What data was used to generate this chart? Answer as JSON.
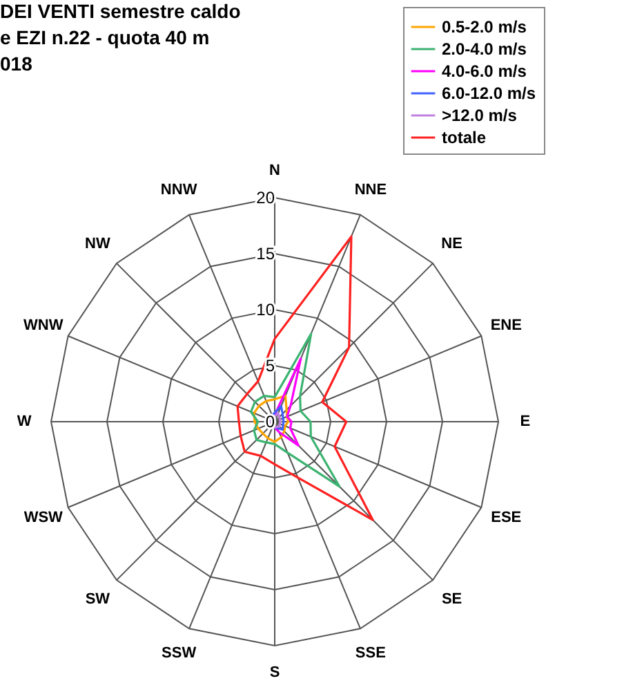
{
  "chart_data": {
    "type": "radar",
    "title": "DEI VENTI  semestre caldo",
    "subtitle": "e EZI n.22 - quota 40 m\n018",
    "categories": [
      "N",
      "NNE",
      "NE",
      "ENE",
      "E",
      "ESE",
      "SE",
      "SSE",
      "S",
      "SSW",
      "SW",
      "WSW",
      "W",
      "WNW",
      "NW",
      "NNW"
    ],
    "series": [
      {
        "name": "0.5-2.0 m/s",
        "color": "#ffa500",
        "values": [
          2.0,
          2.5,
          1.5,
          1.2,
          1.2,
          1.0,
          1.2,
          1.5,
          1.8,
          1.6,
          1.5,
          1.6,
          1.8,
          2.0,
          2.0,
          2.0
        ]
      },
      {
        "name": "2.0-4.0 m/s",
        "color": "#3cb371",
        "values": [
          2.2,
          8.5,
          3.2,
          2.5,
          3.2,
          3.5,
          8.2,
          3.0,
          2.0,
          2.0,
          2.3,
          2.0,
          1.5,
          2.3,
          2.5,
          2.5
        ]
      },
      {
        "name": "4.0-6.0 m/s",
        "color": "#ff00ff",
        "values": [
          0.6,
          6.1,
          2.0,
          1.2,
          1.5,
          1.5,
          3.0,
          1.0,
          0.5,
          0.4,
          0.4,
          0.4,
          0.4,
          0.5,
          0.5,
          0.5
        ]
      },
      {
        "name": "6.0-12.0 m/s",
        "color": "#4060ff",
        "values": [
          0.8,
          1.5,
          1.0,
          0.8,
          0.8,
          0.8,
          1.0,
          0.6,
          0.5,
          0.5,
          0.5,
          0.5,
          0.5,
          0.5,
          0.6,
          0.6
        ]
      },
      {
        "name": ">12.0 m/s",
        "color": "#c080e0",
        "values": [
          0.5,
          0.8,
          0.6,
          0.5,
          0.5,
          0.5,
          0.6,
          0.5,
          0.5,
          0.5,
          0.5,
          0.5,
          0.5,
          0.5,
          0.5,
          0.5
        ]
      },
      {
        "name": "totale",
        "color": "#ff2020",
        "values": [
          7.4,
          17.9,
          9.4,
          4.6,
          6.4,
          5.8,
          12.4,
          5.4,
          3.8,
          3.3,
          3.8,
          3.3,
          3.2,
          3.6,
          3.5,
          3.9
        ]
      }
    ],
    "ylim": [
      0,
      20
    ],
    "yticks": [
      0,
      5,
      10,
      15,
      20
    ],
    "grid": true,
    "legend": "top right",
    "marker": "none",
    "line_style": "solid"
  }
}
